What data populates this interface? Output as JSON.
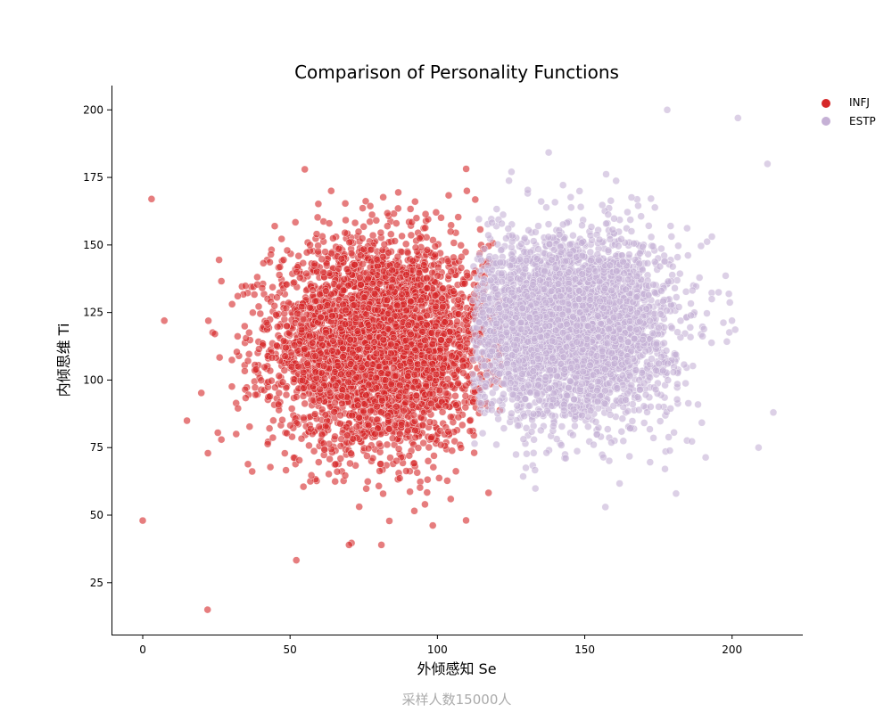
{
  "chart_data": {
    "type": "scatter",
    "title": "Comparison of Personality Functions",
    "xlabel": "外倾感知 Se",
    "ylabel": "内倾思维 Ti",
    "footer": "采样人数15000人",
    "xlim": [
      -10.6,
      224
    ],
    "ylim": [
      5.8,
      209
    ],
    "xticks": [
      0,
      50,
      100,
      150,
      200
    ],
    "yticks": [
      25,
      50,
      75,
      100,
      125,
      150,
      175,
      200
    ],
    "xtick_labels": [
      "0",
      "50",
      "100",
      "150",
      "200"
    ],
    "ytick_labels": [
      "25",
      "50",
      "75",
      "100",
      "125",
      "150",
      "175",
      "200"
    ],
    "grid": false,
    "legend_position": "outside-top-right",
    "sample_size": 15000,
    "series": [
      {
        "name": "INFJ",
        "color": "#d62728",
        "alpha": 0.6,
        "distribution": {
          "x_mean": 80,
          "x_sd": 18,
          "y_mean": 113,
          "y_sd": 19,
          "x_min": 0,
          "x_max": 122
        },
        "notable_points": [
          [
            0,
            48
          ],
          [
            3,
            167
          ],
          [
            22,
            15
          ],
          [
            55,
            178
          ],
          [
            70,
            39
          ],
          [
            81,
            39
          ],
          [
            110,
            170
          ]
        ]
      },
      {
        "name": "ESTP",
        "color": "#c5b0d5",
        "alpha": 0.6,
        "distribution": {
          "x_mean": 145,
          "x_sd": 17,
          "y_mean": 120,
          "y_sd": 17,
          "x_min": 112,
          "x_max": 215
        },
        "notable_points": [
          [
            178,
            200
          ],
          [
            202,
            197
          ],
          [
            212,
            180
          ],
          [
            181,
            58
          ],
          [
            157,
            53
          ],
          [
            209,
            75
          ],
          [
            214,
            88
          ]
        ]
      }
    ]
  }
}
